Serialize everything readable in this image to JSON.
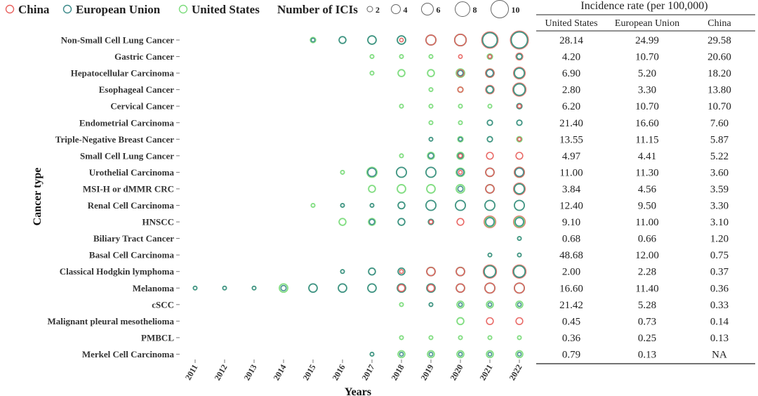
{
  "chart_data": {
    "type": "scatter",
    "title": "",
    "xlabel": "Years",
    "ylabel": "Cancer type",
    "legend": {
      "position": "top",
      "series": [
        {
          "name": "China",
          "color": "#e8625f"
        },
        {
          "name": "European Union",
          "color": "#3c8a8a"
        },
        {
          "name": "United States",
          "color": "#7ddc7d"
        }
      ],
      "size_title": "Number of ICIs",
      "size_values": [
        "2",
        "4",
        "6",
        "8",
        "10"
      ]
    },
    "years": [
      "2011",
      "2012",
      "2013",
      "2014",
      "2015",
      "2016",
      "2017",
      "2018",
      "2019",
      "2020",
      "2021",
      "2022"
    ],
    "cancer_types": [
      "Non-Small Cell Lung Cancer",
      "Gastric Cancer",
      "Hepatocellular Carcinoma",
      "Esophageal Cancer",
      "Cervical Cancer",
      "Endometrial Carcinoma",
      "Triple-Negative Breast Cancer",
      "Small Cell Lung Cancer",
      "Urothelial Carcinoma",
      "MSI-H or dMMR CRC",
      "Renal Cell Carcinoma",
      "HNSCC",
      "Biliary Tract Cancer",
      "Basal Cell Carcinoma",
      "Classical Hodgkin lymphoma",
      "Melanoma",
      "cSCC",
      "Malignant pleural mesothelioma",
      "PMBCL",
      "Merkel Cell Carcinoma"
    ],
    "bubbles": [
      {
        "cancer": "Non-Small Cell Lung Cancer",
        "year": "2015",
        "us": 2,
        "eu": 1,
        "cn": 0
      },
      {
        "cancer": "Non-Small Cell Lung Cancer",
        "year": "2016",
        "us": 3,
        "eu": 3,
        "cn": 0
      },
      {
        "cancer": "Non-Small Cell Lung Cancer",
        "year": "2017",
        "us": 4,
        "eu": 4,
        "cn": 0
      },
      {
        "cancer": "Non-Small Cell Lung Cancer",
        "year": "2018",
        "us": 4,
        "eu": 4,
        "cn": 1
      },
      {
        "cancer": "Non-Small Cell Lung Cancer",
        "year": "2019",
        "us": 5,
        "eu": 5,
        "cn": 5
      },
      {
        "cancer": "Non-Small Cell Lung Cancer",
        "year": "2020",
        "us": 6,
        "eu": 6,
        "cn": 6
      },
      {
        "cancer": "Non-Small Cell Lung Cancer",
        "year": "2021",
        "us": 8,
        "eu": 8,
        "cn": 9
      },
      {
        "cancer": "Non-Small Cell Lung Cancer",
        "year": "2022",
        "us": 9,
        "eu": 9,
        "cn": 10
      },
      {
        "cancer": "Gastric Cancer",
        "year": "2017",
        "us": 1,
        "eu": 0,
        "cn": 0
      },
      {
        "cancer": "Gastric Cancer",
        "year": "2018",
        "us": 1,
        "eu": 0,
        "cn": 0
      },
      {
        "cancer": "Gastric Cancer",
        "year": "2019",
        "us": 1,
        "eu": 0,
        "cn": 0
      },
      {
        "cancer": "Gastric Cancer",
        "year": "2020",
        "us": 0,
        "eu": 0,
        "cn": 1
      },
      {
        "cancer": "Gastric Cancer",
        "year": "2021",
        "us": 2,
        "eu": 1,
        "cn": 1
      },
      {
        "cancer": "Gastric Cancer",
        "year": "2022",
        "us": 2,
        "eu": 2,
        "cn": 3
      },
      {
        "cancer": "Hepatocellular Carcinoma",
        "year": "2017",
        "us": 1,
        "eu": 0,
        "cn": 0
      },
      {
        "cancer": "Hepatocellular Carcinoma",
        "year": "2018",
        "us": 3,
        "eu": 0,
        "cn": 0
      },
      {
        "cancer": "Hepatocellular Carcinoma",
        "year": "2019",
        "us": 3,
        "eu": 0,
        "cn": 0
      },
      {
        "cancer": "Hepatocellular Carcinoma",
        "year": "2020",
        "us": 4,
        "eu": 2,
        "cn": 3
      },
      {
        "cancer": "Hepatocellular Carcinoma",
        "year": "2021",
        "us": 4,
        "eu": 3,
        "cn": 4
      },
      {
        "cancer": "Hepatocellular Carcinoma",
        "year": "2022",
        "us": 5,
        "eu": 5,
        "cn": 6
      },
      {
        "cancer": "Esophageal Cancer",
        "year": "2019",
        "us": 1,
        "eu": 0,
        "cn": 0
      },
      {
        "cancer": "Esophageal Cancer",
        "year": "2020",
        "us": 2,
        "eu": 0,
        "cn": 2
      },
      {
        "cancer": "Esophageal Cancer",
        "year": "2021",
        "us": 3,
        "eu": 3,
        "cn": 4
      },
      {
        "cancer": "Esophageal Cancer",
        "year": "2022",
        "us": 6,
        "eu": 6,
        "cn": 7
      },
      {
        "cancer": "Cervical Cancer",
        "year": "2018",
        "us": 1,
        "eu": 0,
        "cn": 0
      },
      {
        "cancer": "Cervical Cancer",
        "year": "2019",
        "us": 1,
        "eu": 0,
        "cn": 0
      },
      {
        "cancer": "Cervical Cancer",
        "year": "2020",
        "us": 1,
        "eu": 0,
        "cn": 0
      },
      {
        "cancer": "Cervical Cancer",
        "year": "2021",
        "us": 1,
        "eu": 0,
        "cn": 0
      },
      {
        "cancer": "Cervical Cancer",
        "year": "2022",
        "us": 2,
        "eu": 2,
        "cn": 1
      },
      {
        "cancer": "Endometrial Carcinoma",
        "year": "2019",
        "us": 1,
        "eu": 0,
        "cn": 0
      },
      {
        "cancer": "Endometrial Carcinoma",
        "year": "2020",
        "us": 1,
        "eu": 0,
        "cn": 0
      },
      {
        "cancer": "Endometrial Carcinoma",
        "year": "2021",
        "us": 2,
        "eu": 2,
        "cn": 0
      },
      {
        "cancer": "Endometrial Carcinoma",
        "year": "2022",
        "us": 2,
        "eu": 2,
        "cn": 0
      },
      {
        "cancer": "Triple-Negative Breast Cancer",
        "year": "2019",
        "us": 1,
        "eu": 1,
        "cn": 0
      },
      {
        "cancer": "Triple-Negative Breast Cancer",
        "year": "2020",
        "us": 2,
        "eu": 1,
        "cn": 0
      },
      {
        "cancer": "Triple-Negative Breast Cancer",
        "year": "2021",
        "us": 2,
        "eu": 2,
        "cn": 0
      },
      {
        "cancer": "Triple-Negative Breast Cancer",
        "year": "2022",
        "us": 2,
        "eu": 1,
        "cn": 1
      },
      {
        "cancer": "Small Cell Lung Cancer",
        "year": "2018",
        "us": 1,
        "eu": 0,
        "cn": 0
      },
      {
        "cancer": "Small Cell Lung Cancer",
        "year": "2019",
        "us": 3,
        "eu": 2,
        "cn": 0
      },
      {
        "cancer": "Small Cell Lung Cancer",
        "year": "2020",
        "us": 3,
        "eu": 2,
        "cn": 1
      },
      {
        "cancer": "Small Cell Lung Cancer",
        "year": "2021",
        "us": 0,
        "eu": 0,
        "cn": 3
      },
      {
        "cancer": "Small Cell Lung Cancer",
        "year": "2022",
        "us": 0,
        "eu": 0,
        "cn": 3
      },
      {
        "cancer": "Urothelial Carcinoma",
        "year": "2016",
        "us": 1,
        "eu": 0,
        "cn": 0
      },
      {
        "cancer": "Urothelial Carcinoma",
        "year": "2017",
        "us": 5,
        "eu": 4,
        "cn": 0
      },
      {
        "cancer": "Urothelial Carcinoma",
        "year": "2018",
        "us": 5,
        "eu": 5,
        "cn": 0
      },
      {
        "cancer": "Urothelial Carcinoma",
        "year": "2019",
        "us": 5,
        "eu": 5,
        "cn": 0
      },
      {
        "cancer": "Urothelial Carcinoma",
        "year": "2020",
        "us": 4,
        "eu": 3,
        "cn": 1
      },
      {
        "cancer": "Urothelial Carcinoma",
        "year": "2021",
        "us": 4,
        "eu": 4,
        "cn": 4
      },
      {
        "cancer": "Urothelial Carcinoma",
        "year": "2022",
        "us": 5,
        "eu": 4,
        "cn": 5
      },
      {
        "cancer": "MSI-H or dMMR CRC",
        "year": "2017",
        "us": 3,
        "eu": 0,
        "cn": 0
      },
      {
        "cancer": "MSI-H or dMMR CRC",
        "year": "2018",
        "us": 4,
        "eu": 0,
        "cn": 0
      },
      {
        "cancer": "MSI-H or dMMR CRC",
        "year": "2019",
        "us": 4,
        "eu": 0,
        "cn": 0
      },
      {
        "cancer": "MSI-H or dMMR CRC",
        "year": "2020",
        "us": 4,
        "eu": 2,
        "cn": 0
      },
      {
        "cancer": "MSI-H or dMMR CRC",
        "year": "2021",
        "us": 4,
        "eu": 4,
        "cn": 4
      },
      {
        "cancer": "MSI-H or dMMR CRC",
        "year": "2022",
        "us": 5,
        "eu": 5,
        "cn": 6
      },
      {
        "cancer": "Renal Cell Carcinoma",
        "year": "2015",
        "us": 1,
        "eu": 0,
        "cn": 0
      },
      {
        "cancer": "Renal Cell Carcinoma",
        "year": "2016",
        "us": 1,
        "eu": 1,
        "cn": 0
      },
      {
        "cancer": "Renal Cell Carcinoma",
        "year": "2017",
        "us": 1,
        "eu": 1,
        "cn": 0
      },
      {
        "cancer": "Renal Cell Carcinoma",
        "year": "2018",
        "us": 3,
        "eu": 3,
        "cn": 0
      },
      {
        "cancer": "Renal Cell Carcinoma",
        "year": "2019",
        "us": 5,
        "eu": 5,
        "cn": 0
      },
      {
        "cancer": "Renal Cell Carcinoma",
        "year": "2020",
        "us": 5,
        "eu": 5,
        "cn": 0
      },
      {
        "cancer": "Renal Cell Carcinoma",
        "year": "2021",
        "us": 5,
        "eu": 5,
        "cn": 0
      },
      {
        "cancer": "Renal Cell Carcinoma",
        "year": "2022",
        "us": 5,
        "eu": 5,
        "cn": 0
      },
      {
        "cancer": "HNSCC",
        "year": "2016",
        "us": 3,
        "eu": 0,
        "cn": 0
      },
      {
        "cancer": "HNSCC",
        "year": "2017",
        "us": 3,
        "eu": 2,
        "cn": 0
      },
      {
        "cancer": "HNSCC",
        "year": "2018",
        "us": 3,
        "eu": 3,
        "cn": 0
      },
      {
        "cancer": "HNSCC",
        "year": "2019",
        "us": 2,
        "eu": 2,
        "cn": 1
      },
      {
        "cancer": "HNSCC",
        "year": "2020",
        "us": 0,
        "eu": 0,
        "cn": 3
      },
      {
        "cancer": "HNSCC",
        "year": "2021",
        "us": 5,
        "eu": 4,
        "cn": 6
      },
      {
        "cancer": "HNSCC",
        "year": "2022",
        "us": 5,
        "eu": 4,
        "cn": 6
      },
      {
        "cancer": "Biliary Tract Cancer",
        "year": "2022",
        "us": 1,
        "eu": 1,
        "cn": 0
      },
      {
        "cancer": "Basal Cell Carcinoma",
        "year": "2021",
        "us": 1,
        "eu": 1,
        "cn": 0
      },
      {
        "cancer": "Basal Cell Carcinoma",
        "year": "2022",
        "us": 1,
        "eu": 1,
        "cn": 0
      },
      {
        "cancer": "Classical Hodgkin lymphoma",
        "year": "2016",
        "us": 1,
        "eu": 1,
        "cn": 0
      },
      {
        "cancer": "Classical Hodgkin lymphoma",
        "year": "2017",
        "us": 3,
        "eu": 3,
        "cn": 0
      },
      {
        "cancer": "Classical Hodgkin lymphoma",
        "year": "2018",
        "us": 3,
        "eu": 3,
        "cn": 1
      },
      {
        "cancer": "Classical Hodgkin lymphoma",
        "year": "2019",
        "us": 4,
        "eu": 4,
        "cn": 4
      },
      {
        "cancer": "Classical Hodgkin lymphoma",
        "year": "2020",
        "us": 4,
        "eu": 4,
        "cn": 4
      },
      {
        "cancer": "Classical Hodgkin lymphoma",
        "year": "2021",
        "us": 6,
        "eu": 6,
        "cn": 7
      },
      {
        "cancer": "Classical Hodgkin lymphoma",
        "year": "2022",
        "us": 6,
        "eu": 6,
        "cn": 7
      },
      {
        "cancer": "Melanoma",
        "year": "2011",
        "us": 1,
        "eu": 1,
        "cn": 0
      },
      {
        "cancer": "Melanoma",
        "year": "2012",
        "us": 1,
        "eu": 1,
        "cn": 0
      },
      {
        "cancer": "Melanoma",
        "year": "2013",
        "us": 1,
        "eu": 1,
        "cn": 0
      },
      {
        "cancer": "Melanoma",
        "year": "2014",
        "us": 4,
        "eu": 2,
        "cn": 0
      },
      {
        "cancer": "Melanoma",
        "year": "2015",
        "us": 4,
        "eu": 4,
        "cn": 0
      },
      {
        "cancer": "Melanoma",
        "year": "2016",
        "us": 4,
        "eu": 4,
        "cn": 0
      },
      {
        "cancer": "Melanoma",
        "year": "2017",
        "us": 4,
        "eu": 4,
        "cn": 0
      },
      {
        "cancer": "Melanoma",
        "year": "2018",
        "us": 4,
        "eu": 4,
        "cn": 3
      },
      {
        "cancer": "Melanoma",
        "year": "2019",
        "us": 4,
        "eu": 4,
        "cn": 3
      },
      {
        "cancer": "Melanoma",
        "year": "2020",
        "us": 4,
        "eu": 4,
        "cn": 4
      },
      {
        "cancer": "Melanoma",
        "year": "2021",
        "us": 5,
        "eu": 5,
        "cn": 5
      },
      {
        "cancer": "Melanoma",
        "year": "2022",
        "us": 5,
        "eu": 5,
        "cn": 5
      },
      {
        "cancer": "cSCC",
        "year": "2018",
        "us": 1,
        "eu": 0,
        "cn": 0
      },
      {
        "cancer": "cSCC",
        "year": "2019",
        "us": 1,
        "eu": 1,
        "cn": 0
      },
      {
        "cancer": "cSCC",
        "year": "2020",
        "us": 3,
        "eu": 1,
        "cn": 0
      },
      {
        "cancer": "cSCC",
        "year": "2021",
        "us": 3,
        "eu": 1,
        "cn": 0
      },
      {
        "cancer": "cSCC",
        "year": "2022",
        "us": 3,
        "eu": 1,
        "cn": 0
      },
      {
        "cancer": "Malignant pleural mesothelioma",
        "year": "2020",
        "us": 3,
        "eu": 0,
        "cn": 0
      },
      {
        "cancer": "Malignant pleural mesothelioma",
        "year": "2021",
        "us": 0,
        "eu": 0,
        "cn": 3
      },
      {
        "cancer": "Malignant pleural mesothelioma",
        "year": "2022",
        "us": 0,
        "eu": 0,
        "cn": 3
      },
      {
        "cancer": "PMBCL",
        "year": "2018",
        "us": 1,
        "eu": 0,
        "cn": 0
      },
      {
        "cancer": "PMBCL",
        "year": "2019",
        "us": 1,
        "eu": 0,
        "cn": 0
      },
      {
        "cancer": "PMBCL",
        "year": "2020",
        "us": 1,
        "eu": 0,
        "cn": 0
      },
      {
        "cancer": "PMBCL",
        "year": "2021",
        "us": 1,
        "eu": 0,
        "cn": 0
      },
      {
        "cancer": "PMBCL",
        "year": "2022",
        "us": 1,
        "eu": 0,
        "cn": 0
      },
      {
        "cancer": "Merkel Cell Carcinoma",
        "year": "2017",
        "us": 1,
        "eu": 1,
        "cn": 0
      },
      {
        "cancer": "Merkel Cell Carcinoma",
        "year": "2018",
        "us": 3,
        "eu": 1,
        "cn": 0
      },
      {
        "cancer": "Merkel Cell Carcinoma",
        "year": "2019",
        "us": 3,
        "eu": 1,
        "cn": 0
      },
      {
        "cancer": "Merkel Cell Carcinoma",
        "year": "2020",
        "us": 3,
        "eu": 1,
        "cn": 0
      },
      {
        "cancer": "Merkel Cell Carcinoma",
        "year": "2021",
        "us": 3,
        "eu": 1,
        "cn": 0
      },
      {
        "cancer": "Merkel Cell Carcinoma",
        "year": "2022",
        "us": 3,
        "eu": 1,
        "cn": 0
      }
    ],
    "incidence_table": {
      "title": "Incidence rate (per 100,000)",
      "columns": [
        "United States",
        "European Union",
        "China"
      ],
      "rows": [
        [
          "28.14",
          "24.99",
          "29.58"
        ],
        [
          "4.20",
          "10.70",
          "20.60"
        ],
        [
          "6.90",
          "5.20",
          "18.20"
        ],
        [
          "2.80",
          "3.30",
          "13.80"
        ],
        [
          "6.20",
          "10.70",
          "10.70"
        ],
        [
          "21.40",
          "16.60",
          "7.60"
        ],
        [
          "13.55",
          "11.15",
          "5.87"
        ],
        [
          "4.97",
          "4.41",
          "5.22"
        ],
        [
          "11.00",
          "11.30",
          "3.60"
        ],
        [
          "3.84",
          "4.56",
          "3.59"
        ],
        [
          "12.40",
          "9.50",
          "3.30"
        ],
        [
          "9.10",
          "11.00",
          "3.10"
        ],
        [
          "0.68",
          "0.66",
          "1.20"
        ],
        [
          "48.68",
          "12.00",
          "0.75"
        ],
        [
          "2.00",
          "2.28",
          "0.37"
        ],
        [
          "16.60",
          "11.40",
          "0.36"
        ],
        [
          "21.42",
          "5.28",
          "0.33"
        ],
        [
          "0.45",
          "0.73",
          "0.14"
        ],
        [
          "0.36",
          "0.25",
          "0.13"
        ],
        [
          "0.79",
          "0.13",
          "NA"
        ]
      ]
    }
  }
}
